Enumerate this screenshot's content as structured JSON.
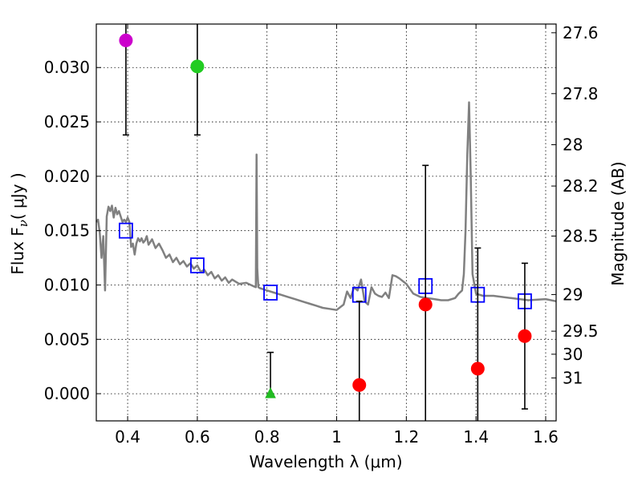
{
  "chart_data": {
    "type": "scatter",
    "xlabel": "Wavelength  λ (μm)",
    "ylabel": "Flux  F",
    "ylabel_subscript": "ν",
    "ylabel_unit": "( μJy )",
    "ylabel_right": "Magnitude (AB)",
    "xlim": [
      0.31,
      1.63
    ],
    "ylim": [
      -0.0025,
      0.034
    ],
    "grid": true,
    "x_ticks": [
      0.4,
      0.6,
      0.8,
      1.0,
      1.2,
      1.4,
      1.6
    ],
    "x_tick_labels": [
      "0.4",
      "0.6",
      "0.8",
      "1",
      "1.2",
      "1.4",
      "1.6"
    ],
    "y_ticks": [
      0.0,
      0.005,
      0.01,
      0.015,
      0.02,
      0.025,
      0.03
    ],
    "y_tick_labels": [
      "0.000",
      "0.005",
      "0.010",
      "0.015",
      "0.020",
      "0.025",
      "0.030"
    ],
    "right_ticks": [
      {
        "label": "27.6",
        "flux": 0.0332
      },
      {
        "label": "27.8",
        "flux": 0.0276
      },
      {
        "label": "28",
        "flux": 0.0229
      },
      {
        "label": "28.2",
        "flux": 0.0191
      },
      {
        "label": "28.5",
        "flux": 0.0145
      },
      {
        "label": "29",
        "flux": 0.00912
      },
      {
        "label": "29.5",
        "flux": 0.00575
      },
      {
        "label": "30",
        "flux": 0.00363
      },
      {
        "label": "31",
        "flux": 0.00145
      }
    ],
    "model_sed": {
      "name": "model spectrum",
      "color": "#808080",
      "x": [
        0.31,
        0.315,
        0.32,
        0.325,
        0.33,
        0.335,
        0.34,
        0.345,
        0.35,
        0.355,
        0.36,
        0.365,
        0.37,
        0.375,
        0.38,
        0.385,
        0.39,
        0.395,
        0.4,
        0.405,
        0.41,
        0.415,
        0.42,
        0.425,
        0.43,
        0.435,
        0.44,
        0.445,
        0.45,
        0.455,
        0.46,
        0.47,
        0.48,
        0.49,
        0.5,
        0.51,
        0.52,
        0.53,
        0.54,
        0.55,
        0.56,
        0.57,
        0.58,
        0.59,
        0.6,
        0.61,
        0.62,
        0.63,
        0.64,
        0.65,
        0.66,
        0.67,
        0.68,
        0.69,
        0.7,
        0.72,
        0.74,
        0.76,
        0.768,
        0.77,
        0.772,
        0.775,
        0.78,
        0.8,
        0.82,
        0.84,
        0.86,
        0.88,
        0.9,
        0.92,
        0.94,
        0.96,
        0.98,
        1.0,
        1.02,
        1.03,
        1.04,
        1.05,
        1.06,
        1.07,
        1.08,
        1.09,
        1.1,
        1.11,
        1.12,
        1.13,
        1.14,
        1.15,
        1.16,
        1.17,
        1.18,
        1.2,
        1.22,
        1.24,
        1.26,
        1.28,
        1.3,
        1.32,
        1.34,
        1.35,
        1.36,
        1.365,
        1.37,
        1.375,
        1.38,
        1.385,
        1.39,
        1.4,
        1.42,
        1.45,
        1.5,
        1.55,
        1.6,
        1.63
      ],
      "y": [
        0.0158,
        0.016,
        0.0148,
        0.0125,
        0.0145,
        0.0095,
        0.0163,
        0.0172,
        0.0168,
        0.0173,
        0.0162,
        0.0171,
        0.0165,
        0.0168,
        0.0163,
        0.0158,
        0.016,
        0.0158,
        0.0162,
        0.0158,
        0.0135,
        0.0138,
        0.0128,
        0.0138,
        0.0143,
        0.014,
        0.0143,
        0.0139,
        0.0141,
        0.0145,
        0.0137,
        0.0142,
        0.0134,
        0.0138,
        0.0132,
        0.0125,
        0.0128,
        0.0121,
        0.0125,
        0.0119,
        0.0122,
        0.0117,
        0.012,
        0.0115,
        0.0118,
        0.0112,
        0.0114,
        0.0109,
        0.0112,
        0.0106,
        0.0109,
        0.0104,
        0.0107,
        0.0102,
        0.0105,
        0.0101,
        0.0102,
        0.0099,
        0.0098,
        0.022,
        0.0115,
        0.0098,
        0.0097,
        0.0095,
        0.0093,
        0.0091,
        0.0089,
        0.0087,
        0.0085,
        0.0083,
        0.0081,
        0.0079,
        0.0078,
        0.0077,
        0.0082,
        0.0094,
        0.0088,
        0.0098,
        0.0095,
        0.0105,
        0.0085,
        0.0082,
        0.0098,
        0.0092,
        0.009,
        0.0089,
        0.0093,
        0.0088,
        0.0109,
        0.0108,
        0.0106,
        0.0101,
        0.0092,
        0.0089,
        0.0088,
        0.0087,
        0.0086,
        0.0086,
        0.0088,
        0.0092,
        0.0095,
        0.011,
        0.015,
        0.022,
        0.0268,
        0.02,
        0.011,
        0.0092,
        0.009,
        0.009,
        0.0088,
        0.0086,
        0.0087,
        0.0085
      ]
    },
    "model_points": {
      "name": "model photometry",
      "color": "#0000ff",
      "x": [
        0.395,
        0.6,
        0.81,
        1.065,
        1.255,
        1.405,
        1.54
      ],
      "y": [
        0.015,
        0.0118,
        0.0093,
        0.0091,
        0.0099,
        0.0091,
        0.0085
      ]
    },
    "observations": [
      {
        "x": 0.395,
        "y": 0.0325,
        "err_low": 0.0238,
        "err_high": 0.034,
        "color": "#cc00cc",
        "marker": "circle"
      },
      {
        "x": 0.6,
        "y": 0.0301,
        "err_low": 0.0238,
        "err_high": 0.034,
        "color": "#22cc22",
        "marker": "circle"
      },
      {
        "x": 0.81,
        "y": 0.0,
        "err_low": 0.0,
        "err_high": 0.0038,
        "color": "#22bb22",
        "marker": "triangle"
      },
      {
        "x": 1.065,
        "y": 0.0008,
        "err_low": -0.0025,
        "err_high": 0.0085,
        "color": "#ff0000",
        "marker": "circle"
      },
      {
        "x": 1.255,
        "y": 0.0082,
        "err_low": -0.0025,
        "err_high": 0.021,
        "color": "#ff0000",
        "marker": "circle"
      },
      {
        "x": 1.405,
        "y": 0.0023,
        "err_low": -0.0025,
        "err_high": 0.0134,
        "color": "#ff0000",
        "marker": "circle"
      },
      {
        "x": 1.54,
        "y": 0.0053,
        "err_low": -0.0014,
        "err_high": 0.012,
        "color": "#ff0000",
        "marker": "circle"
      }
    ]
  }
}
